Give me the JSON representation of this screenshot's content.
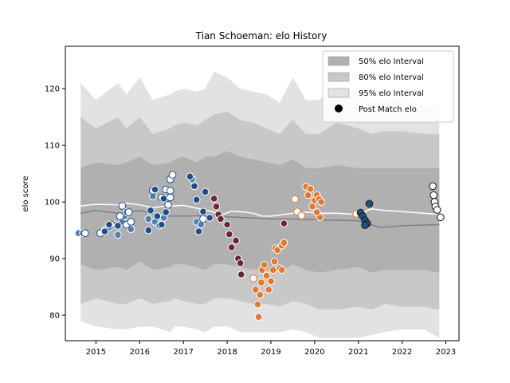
{
  "chart_data": {
    "type": "scatter",
    "title": "Tian Schoeman: elo History",
    "xlabel": "",
    "ylabel": "elo score",
    "xlim": [
      2014.3,
      2023.3
    ],
    "ylim": [
      75.5,
      127.5
    ],
    "xticks": [
      2015,
      2016,
      2017,
      2018,
      2019,
      2020,
      2021,
      2022,
      2023
    ],
    "yticks": [
      80,
      90,
      100,
      110,
      120
    ],
    "grid": false,
    "legend": {
      "placement": "top-right",
      "entries": [
        {
          "label": "50% elo Interval",
          "kind": "patch",
          "color": "#b0b0b0"
        },
        {
          "label": "80% elo Interval",
          "kind": "patch",
          "color": "#c8c8c8"
        },
        {
          "label": "95% elo Interval",
          "kind": "patch",
          "color": "#e2e2e2"
        },
        {
          "label": "Post Match elo",
          "kind": "marker",
          "color": "#000000"
        }
      ]
    },
    "bands": {
      "x": [
        2014.65,
        2015.0,
        2015.5,
        2015.7,
        2016.0,
        2016.3,
        2016.7,
        2016.8,
        2017.0,
        2017.3,
        2017.5,
        2017.7,
        2018.0,
        2018.3,
        2018.6,
        2018.9,
        2019.2,
        2019.5,
        2019.8,
        2020.1,
        2020.5,
        2021.0,
        2021.3,
        2021.6,
        2022.0,
        2022.5,
        2022.85
      ],
      "p95_low": [
        79,
        78,
        77.5,
        77.5,
        78,
        78,
        77,
        78,
        78,
        77.5,
        77,
        78,
        78,
        77,
        77,
        77,
        77,
        77.5,
        77,
        76,
        76,
        76,
        76.5,
        77,
        77.5,
        77.5,
        76
      ],
      "p95_high": [
        121,
        118,
        121,
        119,
        122,
        118,
        119,
        119.5,
        120,
        119.5,
        120,
        123,
        122,
        120,
        119.5,
        119,
        117.5,
        122,
        118,
        118,
        121,
        119,
        118,
        118,
        118.5,
        117,
        117
      ],
      "p80_low": [
        82,
        83,
        82,
        82,
        83,
        82,
        82.5,
        83,
        82.5,
        82,
        82,
        83,
        83,
        82.5,
        82,
        82,
        81.5,
        82.5,
        82,
        81,
        81,
        81.5,
        81,
        82,
        81.5,
        81.5,
        81
      ],
      "p80_high": [
        115,
        113,
        115,
        113,
        115,
        112,
        113,
        113.5,
        114,
        113.5,
        114.5,
        115.5,
        116,
        114.5,
        114,
        113,
        112,
        114.5,
        112,
        112,
        114,
        113,
        112,
        112.5,
        112.5,
        112,
        112
      ],
      "p50_low": [
        89,
        88,
        88.5,
        88,
        89.5,
        88,
        88.5,
        89,
        89,
        88.5,
        88,
        89,
        89,
        88.5,
        88,
        88,
        87.5,
        89,
        88,
        87.5,
        88,
        88.5,
        87.5,
        88,
        88,
        88,
        87.5
      ],
      "p50_high": [
        106,
        107,
        106.5,
        107,
        108,
        106.5,
        107,
        107.5,
        108,
        107,
        108,
        108,
        109,
        108,
        107.5,
        107,
        106.5,
        107.5,
        106,
        106,
        106.5,
        106,
        106,
        106,
        106,
        106,
        106
      ]
    },
    "median_line": {
      "color": "#ffffff",
      "x": [
        2014.65,
        2015.0,
        2015.5,
        2015.7,
        2016.0,
        2016.3,
        2016.6,
        2016.8,
        2017.0,
        2017.3,
        2017.6,
        2017.9,
        2018.1,
        2018.4,
        2018.6,
        2018.8,
        2019.0,
        2019.3,
        2019.5,
        2019.8,
        2020.1,
        2020.5,
        2021.0,
        2021.3,
        2021.6,
        2022.0,
        2022.5,
        2022.85
      ],
      "y": [
        99.3,
        99.6,
        99.5,
        99.8,
        99.5,
        99.0,
        99.3,
        99.3,
        99.4,
        98.9,
        98.4,
        97.8,
        98.4,
        98.2,
        98.0,
        97.5,
        97.5,
        97.8,
        98.0,
        98.2,
        98.0,
        98.0,
        97.8,
        98.8,
        98.5,
        98.3,
        98.0,
        97.8
      ]
    },
    "mean_line": {
      "color": "#808080",
      "x": [
        2014.65,
        2015.0,
        2015.5,
        2016.0,
        2016.5,
        2017.0,
        2017.5,
        2018.0,
        2018.5,
        2019.0,
        2019.5,
        2020.0,
        2020.3,
        2021.0,
        2021.5,
        2022.0,
        2022.85
      ],
      "y": [
        98.0,
        98.5,
        98.0,
        98.5,
        97.5,
        97.5,
        97.6,
        97.4,
        97.2,
        97.0,
        97.0,
        96.9,
        96.8,
        96.7,
        95.5,
        95.8,
        96.0
      ]
    },
    "series": [
      {
        "edge": "#ffffff",
        "fill": "#4d7fb3",
        "points": [
          [
            2014.6,
            94.5
          ],
          [
            2014.7,
            94.5
          ],
          [
            2015.2,
            95.0
          ],
          [
            2015.3,
            95.5
          ],
          [
            2015.4,
            96.0
          ],
          [
            2015.5,
            94.2
          ],
          [
            2015.6,
            96.5
          ],
          [
            2015.65,
            97.5
          ],
          [
            2015.7,
            98.2
          ],
          [
            2015.75,
            96.0
          ],
          [
            2015.8,
            95.2
          ],
          [
            2016.2,
            97.0
          ],
          [
            2016.3,
            101.0
          ],
          [
            2016.35,
            96.5
          ],
          [
            2016.45,
            95.8
          ],
          [
            2016.55,
            97.2
          ],
          [
            2017.2,
            104.0
          ],
          [
            2017.3,
            96.5
          ],
          [
            2017.4,
            96.0
          ]
        ]
      },
      {
        "edge": "#1f4f8a",
        "fill": "#ffffff",
        "points": [
          [
            2014.75,
            94.5
          ],
          [
            2015.1,
            94.5
          ],
          [
            2015.35,
            96.0
          ],
          [
            2015.55,
            97.5
          ],
          [
            2015.6,
            99.3
          ],
          [
            2015.7,
            96.0
          ],
          [
            2015.75,
            98.2
          ],
          [
            2015.8,
            96.5
          ],
          [
            2016.3,
            102.0
          ],
          [
            2016.5,
            100.8
          ],
          [
            2016.6,
            102.2
          ],
          [
            2016.65,
            99.5
          ],
          [
            2016.7,
            104.0
          ],
          [
            2016.75,
            104.8
          ],
          [
            2016.7,
            102.0
          ],
          [
            2016.7,
            100.8
          ],
          [
            2017.45,
            97.0
          ]
        ]
      },
      {
        "edge": "#ffffff",
        "fill": "#1f4f8a",
        "points": [
          [
            2015.2,
            94.8
          ],
          [
            2015.3,
            96.0
          ],
          [
            2015.5,
            95.8
          ],
          [
            2016.2,
            95.0
          ],
          [
            2016.25,
            98.5
          ],
          [
            2016.35,
            102.2
          ],
          [
            2016.4,
            97.5
          ],
          [
            2016.5,
            96.0
          ],
          [
            2016.55,
            100.6
          ],
          [
            2016.6,
            98.2
          ],
          [
            2017.15,
            104.5
          ],
          [
            2017.25,
            102.8
          ],
          [
            2017.3,
            100.4
          ],
          [
            2017.35,
            94.8
          ],
          [
            2017.45,
            98.3
          ],
          [
            2017.5,
            101.8
          ],
          [
            2017.6,
            97.2
          ]
        ]
      },
      {
        "edge": "#ffffff",
        "fill": "#6b2737",
        "points": [
          [
            2017.7,
            100.6
          ],
          [
            2017.75,
            99.2
          ],
          [
            2017.8,
            97.8
          ],
          [
            2017.85,
            97.0
          ],
          [
            2018.0,
            96.0
          ],
          [
            2018.05,
            94.3
          ],
          [
            2018.1,
            92.0
          ],
          [
            2018.2,
            93.2
          ],
          [
            2018.25,
            90.0
          ],
          [
            2018.3,
            89.2
          ],
          [
            2018.32,
            87.2
          ],
          [
            2019.3,
            96.2
          ]
        ]
      },
      {
        "edge": "#ffffff",
        "fill": "#e8762c",
        "points": [
          [
            2018.65,
            84.5
          ],
          [
            2018.7,
            81.9
          ],
          [
            2018.72,
            79.7
          ],
          [
            2018.75,
            83.6
          ],
          [
            2018.78,
            85.8
          ],
          [
            2018.8,
            88.0
          ],
          [
            2018.85,
            88.9
          ],
          [
            2018.9,
            87.0
          ],
          [
            2018.95,
            84.5
          ],
          [
            2019.0,
            86.0
          ],
          [
            2019.05,
            88.0
          ],
          [
            2019.08,
            89.5
          ],
          [
            2019.1,
            91.8
          ],
          [
            2019.15,
            91.5
          ],
          [
            2019.2,
            88.3
          ],
          [
            2019.25,
            92.3
          ],
          [
            2019.3,
            92.8
          ],
          [
            2019.25,
            88.0
          ],
          [
            2019.8,
            102.7
          ],
          [
            2019.85,
            101.2
          ],
          [
            2019.9,
            102.3
          ],
          [
            2019.95,
            99.2
          ],
          [
            2020.0,
            100.3
          ],
          [
            2020.05,
            101.2
          ],
          [
            2020.1,
            100.5
          ],
          [
            2020.15,
            100.0
          ],
          [
            2020.12,
            97.3
          ],
          [
            2020.05,
            98.2
          ]
        ]
      },
      {
        "edge": "#e8762c",
        "fill": "#ffffff",
        "points": [
          [
            2018.6,
            86.5
          ],
          [
            2019.55,
            100.5
          ],
          [
            2019.6,
            98.3
          ],
          [
            2019.7,
            97.6
          ],
          [
            2020.95,
            97.9
          ]
        ]
      },
      {
        "edge": "#1a1a1a",
        "fill": "#1f4f8a",
        "points": [
          [
            2021.05,
            98.1
          ],
          [
            2021.1,
            97.5
          ],
          [
            2021.15,
            96.8
          ],
          [
            2021.2,
            96.2
          ],
          [
            2021.25,
            99.7
          ],
          [
            2021.15,
            95.9
          ]
        ]
      },
      {
        "edge": "#1a1a1a",
        "fill": "#ffffff",
        "points": [
          [
            2022.7,
            102.8
          ],
          [
            2022.72,
            101.2
          ],
          [
            2022.74,
            100.0
          ],
          [
            2022.76,
            99.2
          ],
          [
            2022.8,
            98.6
          ],
          [
            2022.88,
            97.3
          ]
        ]
      }
    ]
  }
}
